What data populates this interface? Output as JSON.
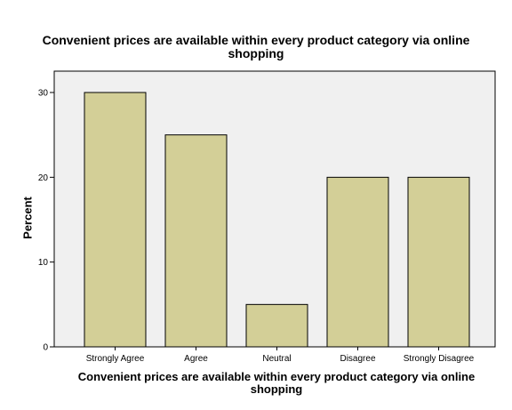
{
  "chart_data": {
    "type": "bar",
    "title_lines": [
      "Convenient prices are available within every product category via online",
      "shopping"
    ],
    "xlabel_lines": [
      "Convenient prices are available within every product category via online",
      "shopping"
    ],
    "ylabel": "Percent",
    "categories": [
      "Strongly Agree",
      "Agree",
      "Neutral",
      "Disagree",
      "Strongly Disagree"
    ],
    "values": [
      30,
      25,
      5,
      20,
      20
    ],
    "ylim": [
      0,
      30
    ],
    "yticks": [
      0,
      10,
      20,
      30
    ],
    "grid": false,
    "legend": "none",
    "colors": {
      "bar_fill": "#d3cf97",
      "bar_stroke": "#000000",
      "plot_background": "#f0f0f0"
    }
  }
}
